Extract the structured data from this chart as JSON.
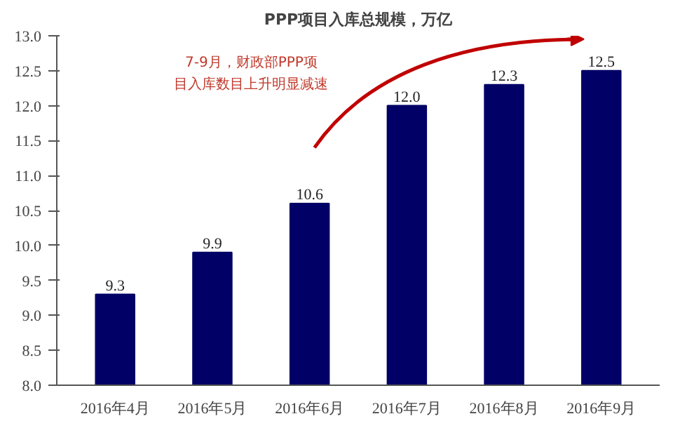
{
  "chart_data": {
    "type": "bar",
    "title": "PPP项目入库总规模，万亿",
    "categories": [
      "2016年4月",
      "2016年5月",
      "2016年6月",
      "2016年7月",
      "2016年8月",
      "2016年9月"
    ],
    "values": [
      9.3,
      9.9,
      10.6,
      12.0,
      12.3,
      12.5
    ],
    "color": "#000066",
    "ylim": [
      8,
      13
    ],
    "yticks": [
      {
        "value": 8,
        "label": "8.0"
      },
      {
        "value": 8.5,
        "label": "8.5"
      },
      {
        "value": 9,
        "label": "9.0"
      },
      {
        "value": 9.5,
        "label": "9.5"
      },
      {
        "value": 10,
        "label": "10.0"
      },
      {
        "value": 10.5,
        "label": "10.5"
      },
      {
        "value": 11,
        "label": "11.0"
      },
      {
        "value": 11.5,
        "label": "11.5"
      },
      {
        "value": 12,
        "label": "12.0"
      },
      {
        "value": 12.5,
        "label": "12.5"
      },
      {
        "value": 13,
        "label": "13.0"
      }
    ],
    "value_labels": [
      "9.3",
      "9.9",
      "10.6",
      "12.0",
      "12.3",
      "12.5"
    ],
    "grid": false,
    "annotations": [
      "7-9月，财政部PPP项目入库数目上升明显减速"
    ]
  }
}
